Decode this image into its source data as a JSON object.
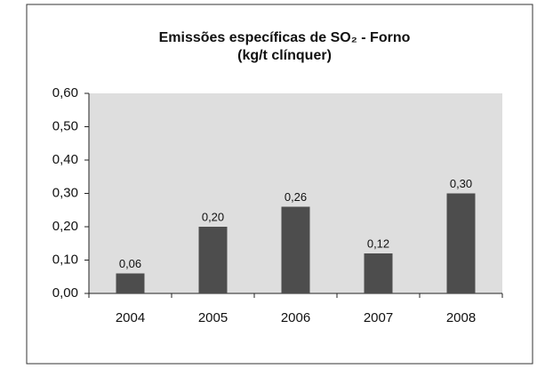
{
  "chart_data": {
    "type": "bar",
    "title": "Emissões específicas de SO₂ - Forno",
    "subtitle": "(kg/t clínquer)",
    "categories": [
      "2004",
      "2005",
      "2006",
      "2007",
      "2008"
    ],
    "values": [
      0.06,
      0.2,
      0.26,
      0.12,
      0.3
    ],
    "value_labels": [
      "0,06",
      "0,20",
      "0,26",
      "0,12",
      "0,30"
    ],
    "color": "#4d4d4d",
    "ylim": [
      0,
      0.6
    ],
    "yticks": [
      {
        "value": 0,
        "label": "0,00"
      },
      {
        "value": 0.1,
        "label": "0,10"
      },
      {
        "value": 0.2,
        "label": "0,20"
      },
      {
        "value": 0.3,
        "label": "0,30"
      },
      {
        "value": 0.4,
        "label": "0,40"
      },
      {
        "value": 0.5,
        "label": "0,50"
      },
      {
        "value": 0.6,
        "label": "0,60"
      }
    ]
  }
}
